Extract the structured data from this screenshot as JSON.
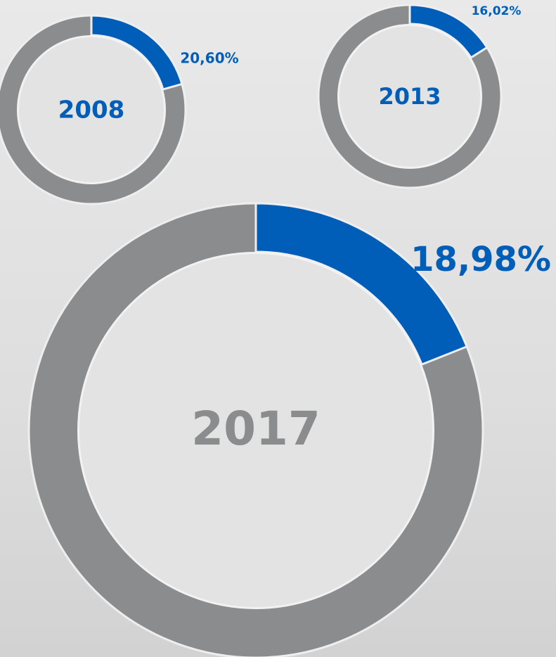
{
  "chart_data": [
    {
      "type": "donut",
      "title": "2008",
      "title_color": "#005eb8",
      "values": [
        20.6
      ],
      "value_labels": [
        "20,60%"
      ],
      "color": "#005eb8",
      "ring_color": "#8a8c8e"
    },
    {
      "type": "donut",
      "title": "2013",
      "title_color": "#005eb8",
      "values": [
        16.02
      ],
      "value_labels": [
        "16,02%"
      ],
      "color": "#005eb8",
      "ring_color": "#8a8c8e"
    },
    {
      "type": "donut",
      "title": "2017",
      "title_color": "#8a8c8e",
      "values": [
        18.98
      ],
      "value_labels": [
        "18,98%"
      ],
      "color": "#005eb8",
      "ring_color": "#8a8c8e"
    }
  ]
}
